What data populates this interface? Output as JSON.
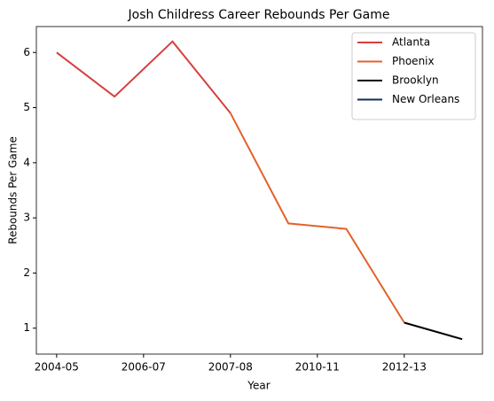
{
  "chart_data": {
    "type": "line",
    "title": "Josh Childress Career Rebounds Per Game",
    "xlabel": "Year",
    "ylabel": "Rebounds Per Game",
    "x": [
      0,
      1,
      2,
      3,
      4,
      5,
      6,
      7
    ],
    "xlim": [
      -0.35,
      7.35
    ],
    "xticks": [
      {
        "value": 0,
        "label": "2004-05"
      },
      {
        "value": 1.5,
        "label": "2006-07"
      },
      {
        "value": 3,
        "label": "2007-08"
      },
      {
        "value": 4.5,
        "label": "2010-11"
      },
      {
        "value": 6,
        "label": "2012-13"
      }
    ],
    "ylim": [
      0.53,
      6.47
    ],
    "yticks": [
      1,
      2,
      3,
      4,
      5,
      6
    ],
    "legend": "upper right",
    "series": [
      {
        "name": "Atlanta",
        "color": "#d63e3e",
        "values": [
          6.0,
          5.2,
          6.2,
          4.9,
          null,
          null,
          null,
          null
        ]
      },
      {
        "name": "Phoenix",
        "color": "#e2622a",
        "values": [
          null,
          null,
          null,
          4.9,
          2.9,
          2.8,
          1.1,
          null
        ]
      },
      {
        "name": "Brooklyn",
        "color": "#000000",
        "values": [
          null,
          null,
          null,
          null,
          null,
          null,
          1.1,
          0.8
        ]
      },
      {
        "name": "New Orleans",
        "color": "#0c2d5c",
        "values": [
          null,
          null,
          null,
          null,
          null,
          null,
          null,
          null
        ]
      }
    ]
  }
}
